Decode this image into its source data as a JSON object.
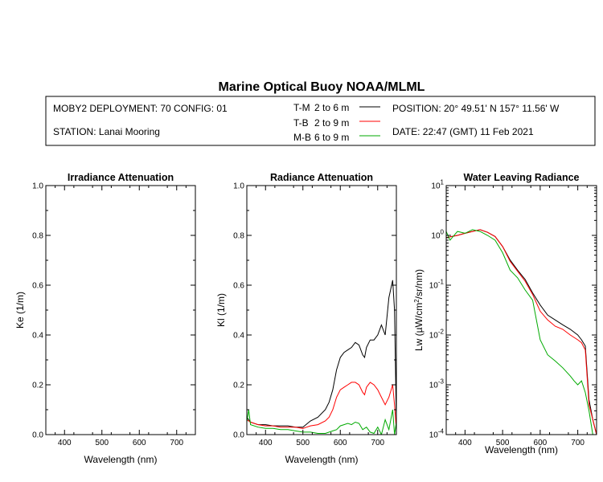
{
  "title": "Marine Optical Buoy NOAA/MLML",
  "header": {
    "deployment": "MOBY2 DEPLOYMENT: 70 CONFIG: 01",
    "station": "STATION: Lanai Mooring",
    "position": "POSITION: 20° 49.51' N   157° 11.56' W",
    "date": "DATE: 22:47 (GMT) 11 Feb 2021"
  },
  "legend": [
    {
      "key": "T-M",
      "range": "2 to 6  m",
      "color": "#000000"
    },
    {
      "key": "T-B",
      "range": "2 to 9  m",
      "color": "#ff0000"
    },
    {
      "key": "M-B",
      "range": "6 to 9  m",
      "color": "#00aa00"
    }
  ],
  "chart_data": [
    {
      "type": "line",
      "title": "Irradiance Attenuation",
      "xlabel": "Wavelength (nm)",
      "ylabel": "Ke  (1/m)",
      "xlim": [
        350,
        750
      ],
      "ylim": [
        0,
        1
      ],
      "xticks": [
        "400",
        "500",
        "600",
        "700"
      ],
      "yticks": [
        "0.0",
        "0.2",
        "0.4",
        "0.6",
        "0.8",
        "1.0"
      ],
      "series": []
    },
    {
      "type": "line",
      "title": "Radiance Attenuation",
      "xlabel": "Wavelength (nm)",
      "ylabel": "Kl  (1/m)",
      "xlim": [
        350,
        750
      ],
      "ylim": [
        0,
        1
      ],
      "xticks": [
        "400",
        "500",
        "600",
        "700"
      ],
      "yticks": [
        "0.0",
        "0.2",
        "0.4",
        "0.6",
        "0.8",
        "1.0"
      ],
      "series": [
        {
          "name": "T-M",
          "color": "#000000",
          "x": [
            350,
            360,
            380,
            400,
            420,
            440,
            460,
            480,
            500,
            520,
            540,
            560,
            570,
            580,
            590,
            600,
            610,
            620,
            630,
            640,
            650,
            660,
            665,
            670,
            680,
            690,
            700,
            710,
            720,
            730,
            740,
            745,
            750
          ],
          "y": [
            0.07,
            0.05,
            0.04,
            0.04,
            0.035,
            0.035,
            0.035,
            0.03,
            0.03,
            0.055,
            0.07,
            0.1,
            0.13,
            0.18,
            0.26,
            0.31,
            0.33,
            0.34,
            0.35,
            0.37,
            0.36,
            0.32,
            0.31,
            0.35,
            0.38,
            0.38,
            0.4,
            0.44,
            0.4,
            0.55,
            0.62,
            0.5,
            0.05
          ]
        },
        {
          "name": "T-B",
          "color": "#ff0000",
          "x": [
            350,
            360,
            380,
            400,
            420,
            440,
            460,
            480,
            500,
            520,
            540,
            560,
            570,
            580,
            590,
            600,
            610,
            620,
            630,
            640,
            650,
            660,
            665,
            670,
            680,
            690,
            700,
            710,
            720,
            730,
            740,
            745,
            750
          ],
          "y": [
            0.06,
            0.05,
            0.04,
            0.035,
            0.035,
            0.03,
            0.03,
            0.03,
            0.025,
            0.035,
            0.04,
            0.055,
            0.07,
            0.1,
            0.15,
            0.18,
            0.19,
            0.2,
            0.21,
            0.21,
            0.2,
            0.17,
            0.16,
            0.19,
            0.21,
            0.2,
            0.18,
            0.15,
            0.12,
            0.15,
            0.2,
            0.12,
            0.02
          ]
        },
        {
          "name": "M-B",
          "color": "#00aa00",
          "x": [
            350,
            355,
            360,
            380,
            400,
            420,
            440,
            460,
            480,
            500,
            520,
            540,
            560,
            580,
            590,
            600,
            610,
            620,
            630,
            640,
            650,
            660,
            670,
            680,
            690,
            700,
            710,
            720,
            730,
            740,
            745,
            750
          ],
          "y": [
            0.05,
            0.1,
            0.04,
            0.03,
            0.025,
            0.025,
            0.02,
            0.02,
            0.015,
            0.01,
            0.01,
            0.005,
            0.005,
            0.015,
            0.02,
            0.035,
            0.04,
            0.045,
            0.04,
            0.05,
            0.045,
            0.02,
            0.03,
            0.01,
            0.005,
            0.03,
            0.0,
            0.06,
            0.02,
            0.1,
            0.0,
            0.05
          ]
        }
      ]
    },
    {
      "type": "line",
      "title": "Water Leaving Radiance",
      "xlabel": "Wavelength (nm)",
      "ylabel": "Lw  (µW/cm²/sr/nm)",
      "xlim": [
        350,
        750
      ],
      "ylim_log10": [
        -4,
        1
      ],
      "yscale": "log",
      "xticks": [
        "400",
        "500",
        "600",
        "700"
      ],
      "yticks": [
        "10-4",
        "10-3",
        "10-2",
        "10-1",
        "100",
        "101"
      ],
      "series": [
        {
          "name": "T-M",
          "color": "#000000",
          "x": [
            350,
            380,
            400,
            420,
            440,
            460,
            480,
            500,
            520,
            540,
            560,
            580,
            600,
            620,
            640,
            660,
            680,
            700,
            710,
            720,
            730,
            740,
            750
          ],
          "y": [
            0.9,
            1.0,
            1.1,
            1.2,
            1.3,
            1.15,
            0.95,
            0.6,
            0.32,
            0.2,
            0.13,
            0.07,
            0.04,
            0.025,
            0.02,
            0.016,
            0.013,
            0.01,
            0.008,
            0.006,
            0.0005,
            0.0002,
            0.0001
          ]
        },
        {
          "name": "T-B",
          "color": "#ff0000",
          "x": [
            350,
            380,
            400,
            420,
            440,
            460,
            480,
            500,
            520,
            540,
            560,
            580,
            600,
            620,
            640,
            660,
            680,
            700,
            710,
            720,
            730,
            740,
            750
          ],
          "y": [
            0.9,
            1.0,
            1.1,
            1.2,
            1.3,
            1.15,
            0.95,
            0.6,
            0.3,
            0.19,
            0.12,
            0.065,
            0.03,
            0.02,
            0.015,
            0.013,
            0.01,
            0.008,
            0.007,
            0.005,
            0.0004,
            0.0002,
            0.0001
          ]
        },
        {
          "name": "M-B",
          "color": "#00aa00",
          "x": [
            350,
            360,
            380,
            400,
            420,
            440,
            460,
            480,
            500,
            520,
            540,
            560,
            580,
            600,
            620,
            640,
            660,
            680,
            690,
            700,
            710,
            720,
            730,
            740,
            750
          ],
          "y": [
            1.2,
            0.8,
            1.2,
            1.1,
            1.3,
            1.2,
            1.0,
            0.8,
            0.45,
            0.2,
            0.14,
            0.08,
            0.05,
            0.008,
            0.004,
            0.003,
            0.0022,
            0.0015,
            0.0012,
            0.001,
            0.0012,
            0.0007,
            0.0003,
            0.0001,
            8e-05
          ]
        }
      ]
    }
  ]
}
